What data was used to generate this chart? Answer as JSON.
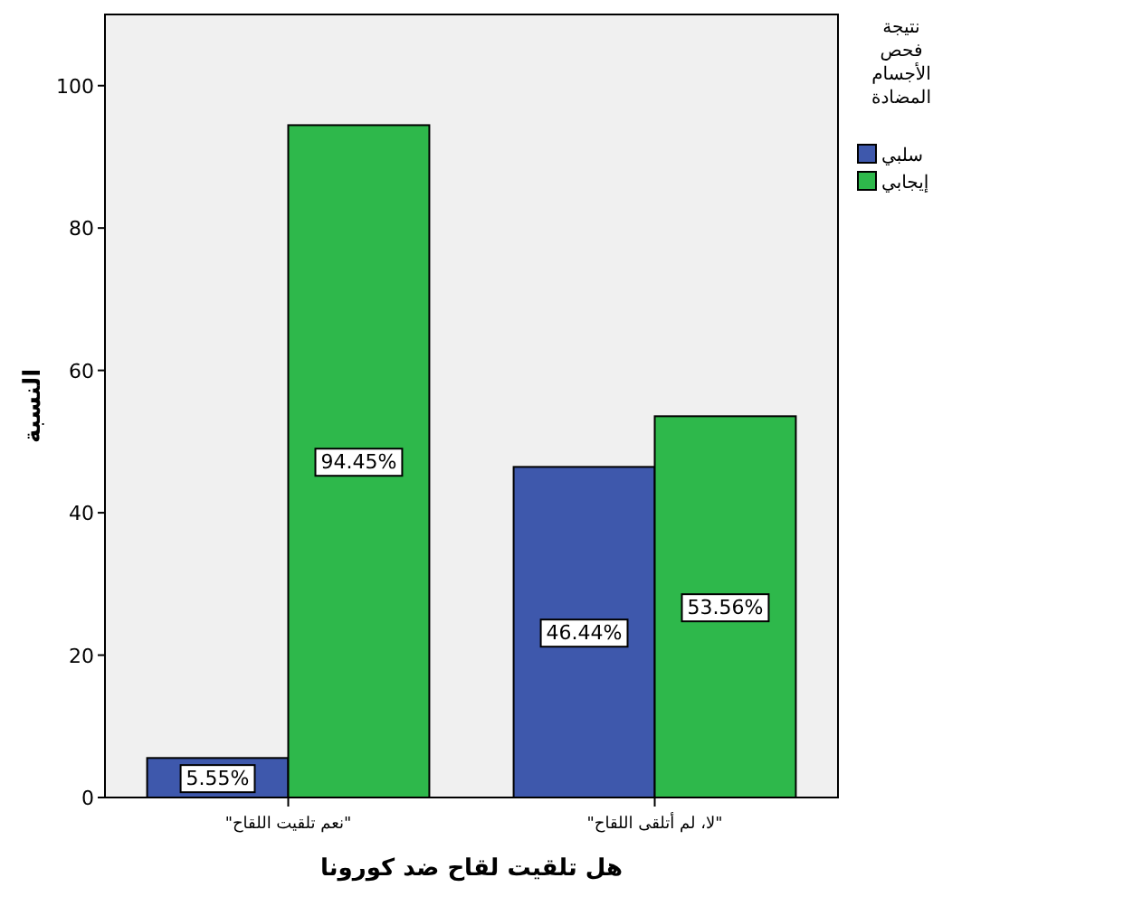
{
  "chart_data": {
    "type": "bar",
    "xlabel": "هل تلقيت لقاح ضد كورونا",
    "ylabel": "النسبة",
    "legend_title": "نتيجة فحص الأجسام المضادة",
    "categories": [
      "\"نعم تلقيت اللقاح\"",
      "\"لا، لم أتلقى اللقاح\""
    ],
    "series": [
      {
        "name": "سلبي",
        "color": "#3e58ac",
        "values": [
          5.55,
          46.44
        ],
        "value_labels": [
          "5.55%",
          "46.44%"
        ]
      },
      {
        "name": "إيجابي",
        "color": "#2eb84b",
        "values": [
          94.45,
          53.56
        ],
        "value_labels": [
          "94.45%",
          "53.56%"
        ]
      }
    ],
    "ylim": [
      0,
      110
    ],
    "yticks": [
      0,
      20,
      40,
      60,
      80,
      100
    ],
    "grid": false,
    "legend": "top right"
  }
}
